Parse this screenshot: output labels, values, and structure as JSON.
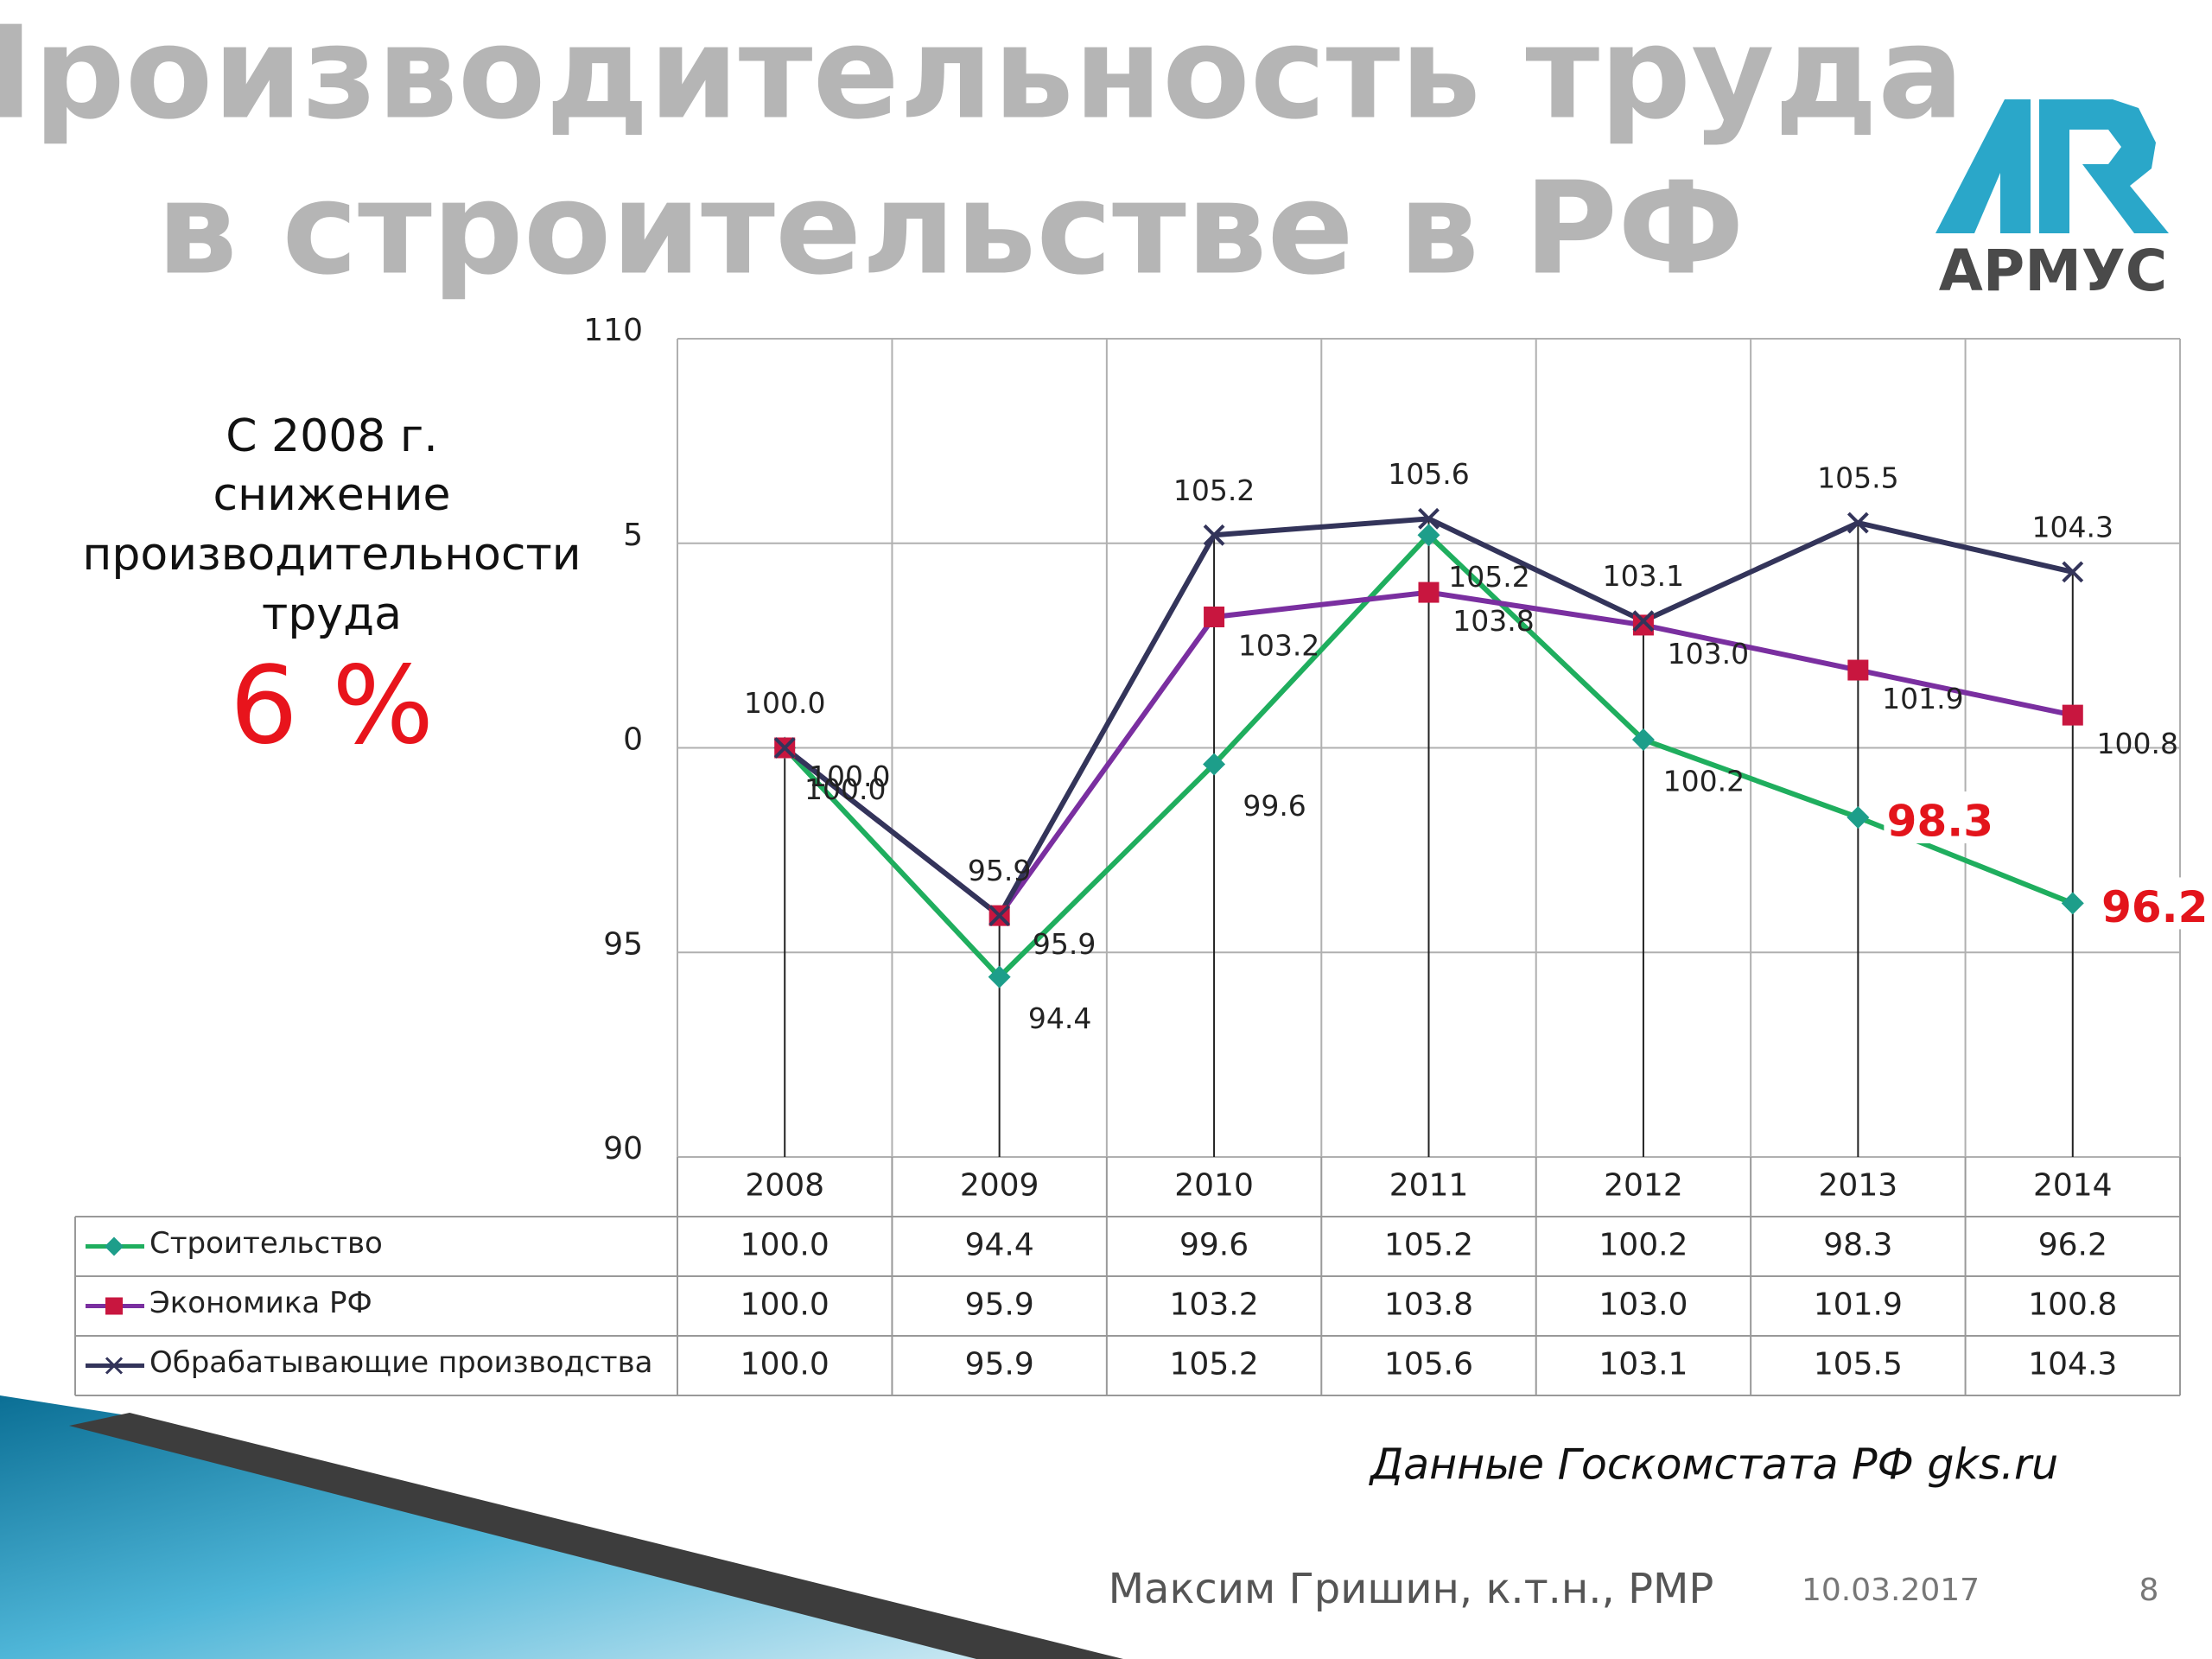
{
  "title_lines": [
    "Производительность труда",
    "в строительстве в РФ"
  ],
  "logo": "АРМУС",
  "note_lines": [
    "С 2008 г.",
    "снижение",
    "производительности",
    "труда"
  ],
  "note_value": "6 %",
  "source": "Данные Госкомстата РФ gks.ru",
  "footer": {
    "author": "Максим Гришин, к.т.н., РМР",
    "date": "10.03.2017",
    "page": "8"
  },
  "chart_data": {
    "type": "line",
    "categories": [
      "2008",
      "2009",
      "2010",
      "2011",
      "2012",
      "2013",
      "2014"
    ],
    "ylim": [
      90,
      110
    ],
    "yticks": [
      110,
      {
        "value": 105,
        "label": "5"
      },
      {
        "value": 100,
        "label": "0"
      },
      95,
      90
    ],
    "grid": true,
    "series": [
      {
        "name": "Строительство",
        "color": "#1fae5e",
        "marker": "diamond",
        "marker_color": "#1d9e8a",
        "values": [
          100.0,
          94.4,
          99.6,
          105.2,
          100.2,
          98.3,
          96.2
        ],
        "value_labels": [
          "100.0",
          "94.4",
          "99.6",
          "105.2",
          "100.2",
          "98.3",
          "96.2"
        ],
        "highlight": {
          "indices": [
            5,
            6
          ],
          "color": "#e3141b"
        }
      },
      {
        "name": "Экономика РФ",
        "color": "#7a2fa0",
        "marker": "square",
        "marker_color": "#c8163f",
        "values": [
          100.0,
          95.9,
          103.2,
          103.8,
          103.0,
          101.9,
          100.8
        ],
        "value_labels": [
          "100.0",
          "95.9",
          "103.2",
          "103.8",
          "103.0",
          "101.9",
          "100.8"
        ]
      },
      {
        "name": "Обрабатывающие производства",
        "color": "#33345a",
        "marker": "x",
        "marker_color": "#33345a",
        "values": [
          100.0,
          95.9,
          105.2,
          105.6,
          103.1,
          105.5,
          104.3
        ],
        "value_labels": [
          "100.0",
          "95.9",
          "105.2",
          "105.6",
          "103.1",
          "105.5",
          "104.3"
        ]
      }
    ]
  }
}
